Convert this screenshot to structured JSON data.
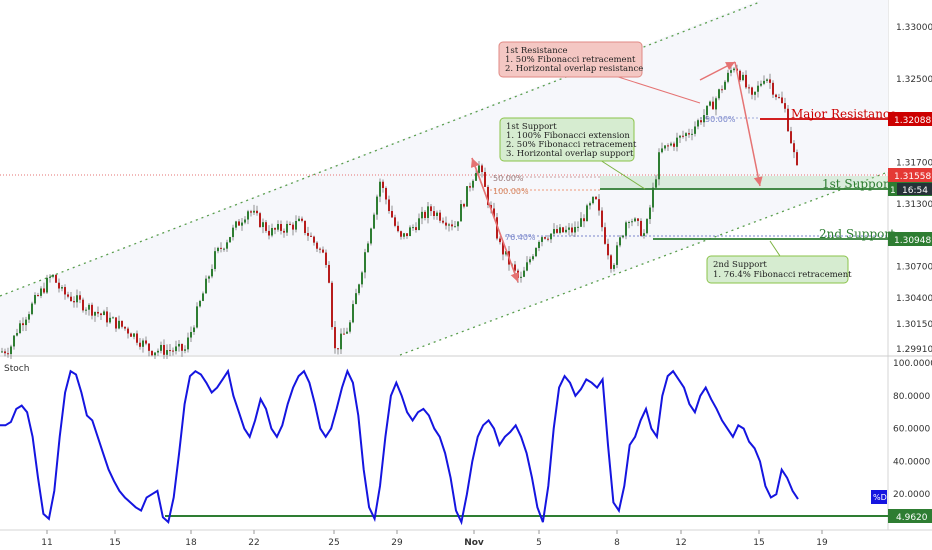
{
  "chart_data": {
    "type": "candlestick",
    "price_axis": {
      "ticks": [
        "1.33000",
        "1.32500",
        "1.32088",
        "1.31700",
        "1.31558",
        "1.31300",
        "1.30948",
        "1.30700",
        "1.30400",
        "1.30150",
        "1.29910"
      ],
      "plain_ticks": [
        1.33,
        1.325,
        1.317,
        1.313,
        1.307,
        1.304,
        1.3015,
        1.2991
      ],
      "ylim": [
        1.2978,
        1.3336
      ]
    },
    "stoch_axis": {
      "label": "Stoch",
      "ticks": [
        "100.0000",
        "80.0000",
        "60.0000",
        "40.0000",
        "20.0000"
      ],
      "ylim": [
        0,
        100
      ],
      "current": "4.9620",
      "series_badge": "%D"
    },
    "x_axis": {
      "ticks": [
        "11",
        "15",
        "18",
        "22",
        "25",
        "29",
        "Nov",
        "5",
        "8",
        "12",
        "15",
        "19"
      ]
    },
    "price_tags": {
      "major_resistance_price": "1.32088",
      "last_price": "1.31558",
      "countdown": "16:54",
      "support2_price": "1.30948"
    },
    "levels": {
      "major_resistance": {
        "label": "Major Resistance",
        "price": 1.32088,
        "color": "#cc0000"
      },
      "first_support": {
        "label": "1st Support",
        "price": 1.314,
        "color": "#2e7d32"
      },
      "second_support": {
        "label": "2nd Support",
        "price": 1.30948,
        "color": "#2e7d32"
      }
    },
    "fib_labels": {
      "left_50": "50.00%",
      "left_100": "100.00%",
      "left_76": "76.40%",
      "right_50": "50.00%"
    },
    "annotations": {
      "resistance": [
        "1st Resistance",
        "1. 50% Fibonacci retracement",
        "2. Horizontal overlap resistance"
      ],
      "support1": [
        "1st Support",
        "1. 100% Fibonacci extension",
        "2. 50% Fibonacci retracement",
        "3. Horizontal overlap support"
      ],
      "support2": [
        "2nd Support",
        "1. 76.4% Fibonacci retracement"
      ]
    },
    "stoch_values": [
      62,
      62,
      64,
      72,
      74,
      70,
      55,
      30,
      8,
      5,
      22,
      55,
      82,
      95,
      93,
      82,
      68,
      65,
      55,
      45,
      35,
      28,
      22,
      18,
      15,
      12,
      10,
      18,
      20,
      22,
      6,
      3,
      18,
      45,
      75,
      92,
      95,
      93,
      88,
      82,
      85,
      90,
      95,
      80,
      70,
      60,
      55,
      65,
      78,
      72,
      60,
      55,
      62,
      75,
      85,
      92,
      95,
      88,
      75,
      60,
      55,
      60,
      72,
      85,
      95,
      88,
      68,
      35,
      12,
      5,
      25,
      55,
      80,
      88,
      80,
      70,
      65,
      70,
      72,
      68,
      60,
      55,
      45,
      30,
      10,
      3,
      20,
      40,
      55,
      62,
      65,
      60,
      50,
      55,
      58,
      62,
      55,
      45,
      30,
      12,
      3,
      25,
      60,
      85,
      92,
      88,
      80,
      84,
      90,
      88,
      85,
      90,
      50,
      15,
      10,
      25,
      50,
      55,
      65,
      72,
      60,
      55,
      80,
      92,
      95,
      90,
      85,
      75,
      70,
      80,
      85,
      78,
      72,
      65,
      60,
      55,
      62,
      60,
      52,
      48,
      40,
      25,
      18,
      20,
      35,
      30,
      22,
      17
    ]
  }
}
